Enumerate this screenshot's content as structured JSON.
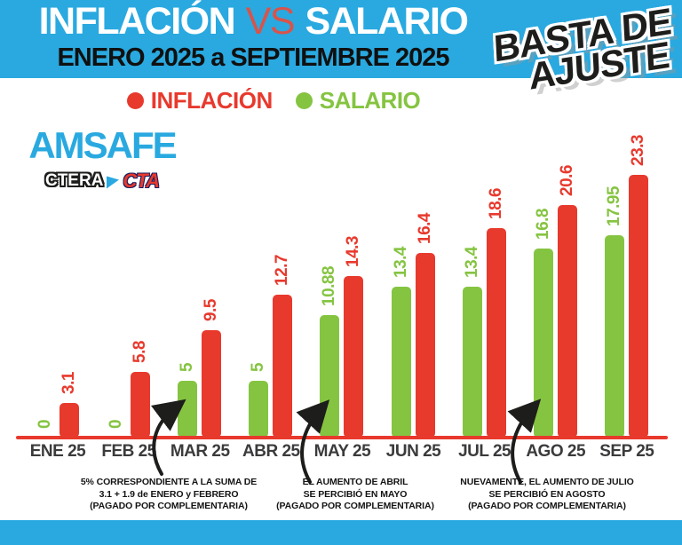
{
  "header": {
    "title_left": "INFLACIÓN",
    "title_vs": "VS",
    "title_right": "SALARIO",
    "subtitle": "ENERO 2025 a SEPTIEMBRE 2025"
  },
  "protest_sticker": {
    "line1": "BASTA DE",
    "line2": "AJUSTE"
  },
  "legend": {
    "items": [
      {
        "label": "INFLACIÓN",
        "color": "#e8392d"
      },
      {
        "label": "SALARIO",
        "color": "#85c441"
      }
    ]
  },
  "logo": {
    "org": "AMSAFE",
    "affiliation_left": "CTERA",
    "affiliation_right": "CTA"
  },
  "chart_data": {
    "type": "bar",
    "title": "INFLACIÓN VS SALARIO — ENERO 2025 a SEPTIEMBRE 2025",
    "categories": [
      "ENE 25",
      "FEB 25",
      "MAR 25",
      "ABR 25",
      "MAY 25",
      "JUN 25",
      "JUL 25",
      "AGO 25",
      "SEP 25"
    ],
    "series": [
      {
        "name": "SALARIO",
        "color": "#85c441",
        "values": [
          0,
          0,
          5,
          5,
          10.88,
          13.4,
          13.4,
          16.8,
          17.95
        ],
        "labels": [
          "0",
          "0",
          "5",
          "5",
          "10.88",
          "13.4",
          "13.4",
          "16.8",
          "17.95"
        ]
      },
      {
        "name": "INFLACIÓN",
        "color": "#e8392d",
        "values": [
          3.1,
          5.8,
          9.5,
          12.7,
          14.3,
          16.4,
          18.6,
          20.6,
          23.3
        ],
        "labels": [
          "3.1",
          "5.8",
          "9.5",
          "12.7",
          "14.3",
          "16.4",
          "18.6",
          "20.6",
          "23.3"
        ]
      }
    ],
    "xlabel": "",
    "ylabel": "",
    "ylim": [
      0,
      25
    ],
    "grid": false,
    "legend_position": "top",
    "value_labels_rotated": true,
    "baseline_color": "#e8392d"
  },
  "annotations": [
    {
      "lines": [
        "5% CORRESPONDIENTE A LA SUMA DE",
        "3.1 + 1.9 de ENERO y FEBRERO",
        "(PAGADO POR COMPLEMENTARIA)"
      ]
    },
    {
      "lines": [
        "EL AUMENTO DE ABRIL",
        "SE PERCIBIÓ EN MAYO",
        "(PAGADO POR COMPLEMENTARIA)"
      ]
    },
    {
      "lines": [
        "NUEVAMENTE, EL AUMENTO DE JULIO",
        "SE PERCIBIÓ EN AGOSTO",
        "(PAGADO POR COMPLEMENTARIA)"
      ]
    }
  ],
  "colors": {
    "header_blue": "#29a9e0",
    "footer_blue": "#29a9e0",
    "inflation_red": "#e8392d",
    "salary_green": "#85c441",
    "axis_label": "#3b3b3d",
    "sticker_black": "#1d1d1b"
  }
}
